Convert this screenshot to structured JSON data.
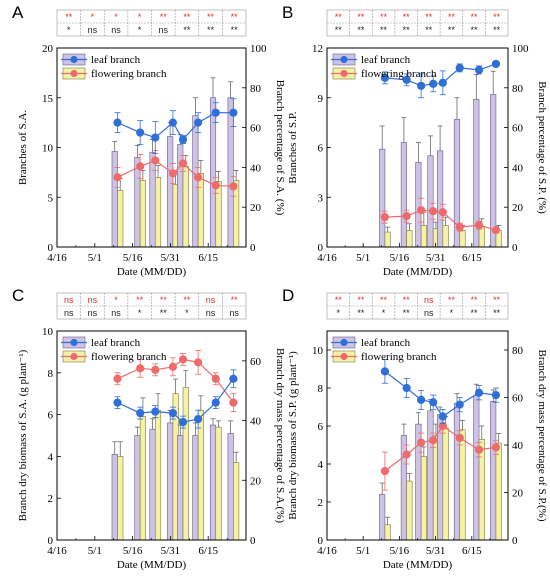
{
  "colors": {
    "leaf_bar": "#cdc3e4",
    "leaf_bar_stroke": "#6a5a8a",
    "flower_bar": "#f5f2a8",
    "flower_bar_stroke": "#7a7a3a",
    "leaf_line": "#2f6fd8",
    "flower_line": "#ef6b6b",
    "sig_red": "#e0302c",
    "sig_black": "#222222"
  },
  "chart_data": [
    {
      "panel": "A",
      "type": "bar",
      "x_ticks": [
        "4/16",
        "5/1",
        "5/16",
        "5/31",
        "6/15"
      ],
      "xlabel": "Date (MM/DD)",
      "ylabel": "Branches of S.A.",
      "ylabel_right": "Branch percentage of S.A. (%)",
      "ylim": [
        0,
        20
      ],
      "y_ticks": [
        "0",
        "5",
        "10",
        "15",
        "20"
      ],
      "ylim_right": [
        0,
        100
      ],
      "y_ticks_right": [
        "0",
        "20",
        "40",
        "60",
        "80",
        "100"
      ],
      "dates": [
        24,
        33,
        39,
        46,
        50,
        56,
        63,
        70
      ],
      "legend": [
        "leaf branch",
        "flowering branch"
      ],
      "significance_top": [
        "**",
        "*",
        "*",
        "*",
        "**",
        "**",
        "**",
        "**"
      ],
      "significance_bottom": [
        "*",
        "ns",
        "ns",
        "*",
        "ns",
        "**",
        "**",
        "**"
      ],
      "leaf_bar": [
        9.6,
        9.0,
        9.5,
        11.1,
        10.3,
        13.2,
        15.0,
        15.0
      ],
      "leaf_bar_err": [
        1.0,
        1.2,
        1.3,
        1.4,
        1.0,
        1.8,
        2.0,
        1.6
      ],
      "flower_bar": [
        5.7,
        6.7,
        7.0,
        6.3,
        8.1,
        7.4,
        6.6,
        6.7
      ],
      "flower_bar_err": [
        1.2,
        1.0,
        1.2,
        1.3,
        1.1,
        1.3,
        1.0,
        1.0
      ],
      "leaf_line": [
        62.5,
        57.5,
        55.0,
        62.5,
        54.0,
        62.5,
        67.5,
        67.5
      ],
      "leaf_line_err": [
        5,
        6,
        8,
        6,
        2,
        5,
        5,
        7
      ],
      "flower_line": [
        35.0,
        40.5,
        43.5,
        37.0,
        42.0,
        35.0,
        31.0,
        30.5
      ],
      "flower_line_err": [
        5,
        6,
        5,
        5,
        4,
        5,
        4,
        5
      ]
    },
    {
      "panel": "B",
      "type": "bar",
      "x_ticks": [
        "4/16",
        "5/1",
        "5/16",
        "5/31",
        "6/15"
      ],
      "xlabel": "Date (MM/DD)",
      "ylabel": "Branches of S.P.",
      "ylabel_right": "Branch percentage of S.P. (%)",
      "ylim": [
        0,
        12
      ],
      "y_ticks": [
        "0",
        "3",
        "6",
        "9",
        "12"
      ],
      "ylim_right": [
        0,
        100
      ],
      "y_ticks_right": [
        "0",
        "20",
        "40",
        "60",
        "80",
        "100"
      ],
      "dates": [
        24,
        33,
        39,
        44,
        48,
        55,
        63,
        70
      ],
      "legend": [
        "leaf branch",
        "flowering branch"
      ],
      "significance_top": [
        "**",
        "**",
        "**",
        "**",
        "**",
        "**",
        "**",
        "**"
      ],
      "significance_bottom": [
        "**",
        "**",
        "**",
        "**",
        "**",
        "**",
        "**",
        "**"
      ],
      "leaf_bar": [
        5.9,
        6.3,
        5.1,
        5.5,
        5.8,
        7.7,
        8.9,
        9.2
      ],
      "leaf_bar_err": [
        1.4,
        1.5,
        1.2,
        1.2,
        1.5,
        1.3,
        1.5,
        1.4
      ],
      "flower_bar": [
        0.9,
        1.0,
        1.3,
        1.1,
        1.3,
        1.0,
        1.2,
        1.0
      ],
      "flower_bar_err": [
        0.3,
        0.4,
        0.8,
        0.4,
        0.5,
        0.3,
        0.5,
        0.3
      ],
      "leaf_line": [
        85.0,
        84.0,
        81.0,
        82.0,
        82.5,
        90.0,
        89.0,
        92.0
      ],
      "leaf_line_err": [
        3,
        3,
        6,
        4,
        6,
        2,
        2,
        1
      ],
      "flower_line": [
        15.0,
        15.5,
        18.5,
        18.0,
        17.5,
        10.0,
        11.0,
        8.5
      ],
      "flower_line_err": [
        3,
        3,
        6,
        4,
        4,
        2,
        2,
        1
      ]
    },
    {
      "panel": "C",
      "type": "bar",
      "x_ticks": [
        "4/16",
        "5/1",
        "5/16",
        "5/31",
        "6/15"
      ],
      "xlabel": "Date (MM/DD)",
      "ylabel": "Branch dry biomass of S.A. (g plant⁻¹)",
      "ylabel_right": "Branch dry mass percentage of S.A.(%)",
      "ylim": [
        0,
        10
      ],
      "y_ticks": [
        "0",
        "2",
        "4",
        "6",
        "8",
        "10"
      ],
      "ylim_right": [
        0,
        70
      ],
      "y_ticks_right": [
        "0",
        "20",
        "40",
        "60"
      ],
      "dates": [
        24,
        33,
        39,
        46,
        50,
        56,
        63,
        70
      ],
      "legend": [
        "leaf branch",
        "flowering branch"
      ],
      "significance_top": [
        "ns",
        "ns",
        "*",
        "**",
        "**",
        "**",
        "ns",
        "**"
      ],
      "significance_bottom": [
        "ns",
        "ns",
        "ns",
        "*",
        "**",
        "*",
        "ns",
        "ns"
      ],
      "leaf_bar": [
        4.1,
        5.0,
        5.3,
        5.6,
        5.0,
        5.0,
        5.5,
        5.1
      ],
      "leaf_bar_err": [
        0.6,
        0.4,
        0.5,
        0.6,
        0.5,
        0.6,
        0.3,
        0.6
      ],
      "flower_bar": [
        4.0,
        5.9,
        6.2,
        7.0,
        7.3,
        6.2,
        5.4,
        3.7
      ],
      "flower_bar_err": [
        0.7,
        0.9,
        0.8,
        0.7,
        0.8,
        0.7,
        0.3,
        0.5
      ],
      "leaf_line": [
        46.0,
        42.5,
        43.0,
        42.5,
        39.5,
        40.5,
        46.0,
        54.0
      ],
      "leaf_line_err": [
        2,
        2,
        2,
        2,
        2,
        3,
        2,
        3
      ],
      "flower_line": [
        54.0,
        57.5,
        57.0,
        58.0,
        60.5,
        59.5,
        54.0,
        46.0
      ],
      "flower_line_err": [
        2,
        3,
        2,
        3,
        2,
        4,
        2,
        3
      ]
    },
    {
      "panel": "D",
      "type": "bar",
      "x_ticks": [
        "4/16",
        "5/1",
        "5/16",
        "5/31",
        "6/15"
      ],
      "xlabel": "Date (MM/DD)",
      "ylabel": "Branch dry biomass of S.P. (g plant⁻¹)",
      "ylabel_right": "Branch dry mass percentage of S.P.(%)",
      "ylim": [
        0,
        11
      ],
      "y_ticks": [
        "0",
        "2",
        "4",
        "6",
        "8",
        "10"
      ],
      "ylim_right": [
        0,
        88
      ],
      "y_ticks_right": [
        "0",
        "20",
        "40",
        "60",
        "80"
      ],
      "dates": [
        24,
        33,
        39,
        44,
        48,
        55,
        63,
        70
      ],
      "legend": [
        "leaf branch",
        "flowering branch"
      ],
      "significance_top": [
        "**",
        "**",
        "**",
        "**",
        "ns",
        "**",
        "**",
        "**"
      ],
      "significance_bottom": [
        "*",
        "**",
        "*",
        "**",
        "ns",
        "*",
        "**",
        "**"
      ],
      "leaf_bar": [
        2.4,
        5.5,
        6.1,
        6.8,
        6.6,
        7.2,
        7.6,
        7.3
      ],
      "leaf_bar_err": [
        0.6,
        0.6,
        0.6,
        0.6,
        0.4,
        0.5,
        0.6,
        0.6
      ],
      "flower_bar": [
        0.8,
        3.1,
        4.4,
        5.5,
        5.9,
        5.8,
        5.3,
        5.1
      ],
      "flower_bar_err": [
        0.4,
        0.4,
        0.5,
        0.6,
        0.6,
        0.5,
        0.7,
        0.5
      ],
      "leaf_line": [
        71.0,
        64.0,
        59.0,
        58.0,
        52.0,
        57.0,
        62.0,
        61.0
      ],
      "leaf_line_err": [
        5,
        4,
        4,
        3,
        3,
        3,
        3,
        3
      ],
      "flower_line": [
        29.0,
        36.0,
        41.0,
        42.0,
        48.0,
        43.0,
        38.0,
        39.0
      ],
      "flower_line_err": [
        8,
        4,
        4,
        3,
        3,
        3,
        3,
        3
      ]
    }
  ]
}
